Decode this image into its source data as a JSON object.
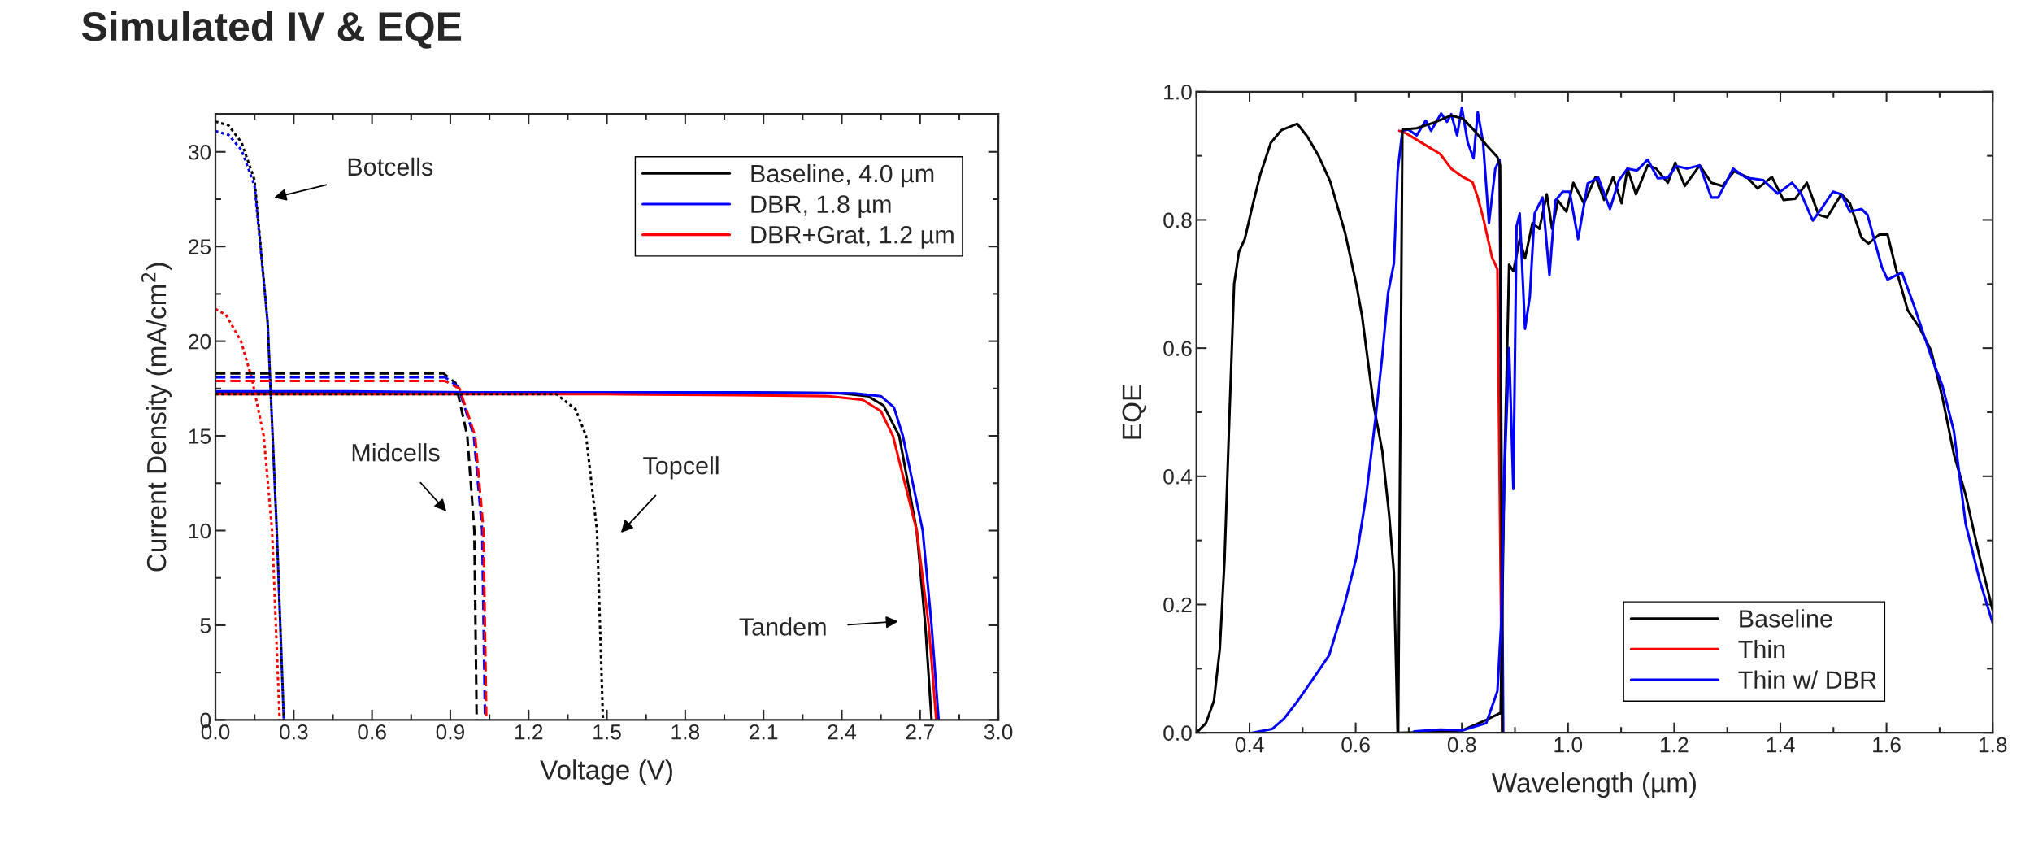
{
  "chart_data": [
    {
      "type": "line",
      "title": "Simulated IV & EQE",
      "xlabel": "Voltage (V)",
      "ylabel": "Current Density (mA/cm$^{2}$)",
      "xlim": [
        0,
        3
      ],
      "ylim": [
        0,
        32
      ],
      "xticks": [
        {
          "value": 0,
          "label": "0.0"
        },
        0.3,
        0.6,
        0.9,
        1.2,
        1.5,
        1.8,
        2.1,
        2.4,
        2.7,
        {
          "value": 3,
          "label": "3.0"
        }
      ],
      "yticks": [
        0,
        5,
        10,
        15,
        20,
        25,
        30
      ],
      "grid": false,
      "legend": "top right",
      "marker": "none",
      "series": [
        {
          "name": "Baseline, 4.0 µm",
          "color": "#000000",
          "line_style": "solid",
          "x": [
            0,
            0.5,
            1.0,
            1.5,
            2.0,
            2.4,
            2.5,
            2.56,
            2.62,
            2.687,
            2.72,
            2.744
          ],
          "values": [
            17.3,
            17.3,
            17.3,
            17.3,
            17.3,
            17.25,
            17.1,
            16.6,
            15,
            10,
            5,
            0
          ]
        },
        {
          "name": "DBR, 1.8 µm",
          "color": "#0000ff",
          "line_style": "solid",
          "x": [
            0,
            0.5,
            1.0,
            1.5,
            2.0,
            2.45,
            2.55,
            2.6,
            2.634,
            2.71,
            2.744,
            2.771
          ],
          "values": [
            17.35,
            17.35,
            17.3,
            17.3,
            17.3,
            17.25,
            17.1,
            16.5,
            15,
            10,
            5,
            0
          ]
        },
        {
          "name": "DBR+Grat, 1.2 µm",
          "color": "#ff0000",
          "line_style": "solid",
          "x": [
            0,
            0.5,
            1.0,
            1.5,
            2.0,
            2.35,
            2.48,
            2.55,
            2.596,
            2.687,
            2.733,
            2.762
          ],
          "values": [
            17.2,
            17.2,
            17.2,
            17.2,
            17.15,
            17.1,
            16.9,
            16.3,
            15,
            10,
            5,
            0
          ]
        },
        {
          "color": "#000000",
          "line_style": "dotted",
          "x": [
            0,
            0.05,
            0.1,
            0.15,
            0.2,
            0.235,
            0.262
          ],
          "values": [
            31.6,
            31.4,
            30.5,
            28.5,
            21,
            10,
            0
          ]
        },
        {
          "color": "#0000ff",
          "line_style": "dotted",
          "x": [
            0,
            0.05,
            0.1,
            0.15,
            0.2,
            0.235,
            0.262
          ],
          "values": [
            31.1,
            30.9,
            30.1,
            28.2,
            21,
            10,
            0
          ]
        },
        {
          "color": "#ff0000",
          "line_style": "dotted",
          "x": [
            0,
            0.04,
            0.098,
            0.14,
            0.185,
            0.217,
            0.246
          ],
          "values": [
            21.7,
            21.4,
            20,
            18,
            15,
            10,
            0
          ]
        },
        {
          "color": "#000000",
          "line_style": "dashed",
          "x": [
            0,
            0.5,
            0.874,
            0.92,
            0.965,
            0.992,
            1.001
          ],
          "values": [
            18.3,
            18.3,
            18.3,
            17.8,
            15,
            10,
            0
          ]
        },
        {
          "color": "#0000ff",
          "line_style": "dashed",
          "x": [
            0,
            0.5,
            0.88,
            0.93,
            0.99,
            1.022,
            1.033
          ],
          "values": [
            18.1,
            18.1,
            18.1,
            17.6,
            15,
            10,
            0
          ]
        },
        {
          "color": "#ff0000",
          "line_style": "dashed",
          "x": [
            0,
            0.5,
            0.88,
            0.935,
            0.995,
            1.027,
            1.038
          ],
          "values": [
            17.9,
            17.9,
            17.9,
            17.5,
            15,
            10,
            0
          ]
        },
        {
          "color": "#000000",
          "line_style": "dotted",
          "x": [
            0,
            0.8,
            1.307,
            1.38,
            1.42,
            1.462,
            1.485
          ],
          "values": [
            17.2,
            17.2,
            17.2,
            16.4,
            15,
            10,
            0
          ]
        }
      ],
      "annotations": [
        "Botcells",
        "Midcells",
        "Topcell",
        "Tandem"
      ]
    },
    {
      "type": "line",
      "xlabel": "Wavelength (µm)",
      "ylabel": "EQE",
      "xlim": [
        0.3,
        1.8
      ],
      "ylim": [
        0,
        1
      ],
      "xticks": [
        0.4,
        0.6,
        0.8,
        {
          "value": 1,
          "label": "1.0"
        },
        1.2,
        1.4,
        1.6,
        1.8
      ],
      "yticks": [
        {
          "value": 0,
          "label": "0.0"
        },
        0.2,
        0.4,
        0.6,
        0.8,
        {
          "value": 1,
          "label": "1.0"
        }
      ],
      "grid": false,
      "legend": "bottom right",
      "marker": "none",
      "series": [
        {
          "name": "Baseline",
          "color": "#000000",
          "line_style": "solid",
          "x": [
            0.3,
            0.318,
            0.333,
            0.344,
            0.353,
            0.362,
            0.371,
            0.38,
            0.391,
            0.405,
            0.42,
            0.44,
            0.46,
            0.49,
            0.509,
            0.53,
            0.552,
            0.58,
            0.601,
            0.612,
            0.623,
            0.634,
            0.65,
            0.663,
            0.672,
            0.679
          ],
          "values": [
            0,
            0.015,
            0.05,
            0.13,
            0.27,
            0.49,
            0.7,
            0.75,
            0.77,
            0.82,
            0.87,
            0.92,
            0.94,
            0.95,
            0.93,
            0.9,
            0.86,
            0.78,
            0.7,
            0.65,
            0.58,
            0.51,
            0.44,
            0.34,
            0.25,
            0
          ]
        },
        {
          "name": "Thin",
          "color": "#ff0000",
          "line_style": "solid",
          "x": [
            0.682,
            0.693,
            0.715,
            0.737,
            0.759,
            0.78,
            0.802,
            0.82,
            0.83,
            0.84,
            0.857,
            0.867,
            0.876
          ],
          "values": [
            0.939,
            0.936,
            0.925,
            0.914,
            0.903,
            0.88,
            0.867,
            0.859,
            0.835,
            0.804,
            0.741,
            0.723,
            0
          ]
        },
        {
          "name": "Thin w/ DBR",
          "color": "#0000ff",
          "line_style": "solid",
          "x": [
            0.405,
            0.443,
            0.465,
            0.492,
            0.519,
            0.55,
            0.579,
            0.601,
            0.62,
            0.637,
            0.65,
            0.661,
            0.672,
            0.679,
            0.688,
            0.699,
            0.715,
            0.732,
            0.742,
            0.761,
            0.772,
            0.78,
            0.791,
            0.8,
            0.811,
            0.822,
            0.83,
            0.84,
            0.851,
            0.863,
            0.871,
            0.878
          ],
          "values": [
            0,
            0.006,
            0.022,
            0.051,
            0.083,
            0.121,
            0.2,
            0.272,
            0.371,
            0.488,
            0.587,
            0.686,
            0.732,
            0.876,
            0.939,
            0.941,
            0.932,
            0.955,
            0.939,
            0.966,
            0.953,
            0.965,
            0.932,
            0.975,
            0.921,
            0.896,
            0.968,
            0.921,
            0.795,
            0.88,
            0.894,
            0
          ]
        },
        {
          "color": "#000000",
          "line_style": "solid",
          "x": [
            0.68,
            0.688,
            0.715,
            0.748,
            0.78,
            0.802,
            0.824,
            0.846,
            0.867,
            0.872,
            0.876
          ],
          "values": [
            0,
            0.941,
            0.943,
            0.952,
            0.963,
            0.958,
            0.939,
            0.917,
            0.898,
            0.885,
            0
          ]
        },
        {
          "color": "#000000",
          "line_style": "solid",
          "x": [
            0.68,
            0.75,
            0.802,
            0.846,
            0.87,
            0.873,
            0.88,
            0.889,
            0.897,
            0.909,
            0.919,
            0.933,
            0.946,
            0.96,
            0.97,
            0.981,
            0.997,
            1.01,
            1.03,
            1.052,
            1.068,
            1.085,
            1.101,
            1.112,
            1.128,
            1.15,
            1.166,
            1.188,
            1.202,
            1.22,
            1.248,
            1.27,
            1.291,
            1.313,
            1.337,
            1.357,
            1.384,
            1.406,
            1.428,
            1.45,
            1.472,
            1.488,
            1.515,
            1.531,
            1.553,
            1.566,
            1.586,
            1.602,
            1.618,
            1.64,
            1.662,
            1.684,
            1.705,
            1.727,
            1.749,
            1.776,
            1.8
          ],
          "values": [
            0,
            0.001,
            0.004,
            0.02,
            0.03,
            0.03,
            0.4,
            0.73,
            0.72,
            0.77,
            0.74,
            0.795,
            0.786,
            0.84,
            0.786,
            0.83,
            0.813,
            0.858,
            0.826,
            0.867,
            0.831,
            0.867,
            0.826,
            0.88,
            0.84,
            0.885,
            0.88,
            0.858,
            0.889,
            0.853,
            0.885,
            0.858,
            0.853,
            0.876,
            0.867,
            0.849,
            0.867,
            0.831,
            0.833,
            0.858,
            0.808,
            0.804,
            0.84,
            0.826,
            0.772,
            0.763,
            0.777,
            0.777,
            0.723,
            0.659,
            0.632,
            0.596,
            0.524,
            0.434,
            0.371,
            0.272,
            0.191
          ]
        },
        {
          "color": "#0000ff",
          "line_style": "solid",
          "x": [
            0.71,
            0.759,
            0.802,
            0.846,
            0.867,
            0.874,
            0.88,
            0.889,
            0.897,
            0.903,
            0.909,
            0.919,
            0.928,
            0.937,
            0.952,
            0.965,
            0.976,
            0.99,
            1.003,
            1.019,
            1.037,
            1.057,
            1.079,
            1.096,
            1.112,
            1.13,
            1.15,
            1.169,
            1.188,
            1.204,
            1.224,
            1.248,
            1.27,
            1.283,
            1.311,
            1.335,
            1.368,
            1.395,
            1.422,
            1.439,
            1.461,
            1.477,
            1.499,
            1.515,
            1.531,
            1.553,
            1.564,
            1.591,
            1.602,
            1.629,
            1.651,
            1.684,
            1.705,
            1.727,
            1.749,
            1.776,
            1.8
          ],
          "values": [
            0.002,
            0.005,
            0.004,
            0.015,
            0.065,
            0.17,
            0.4,
            0.6,
            0.38,
            0.79,
            0.81,
            0.63,
            0.68,
            0.81,
            0.835,
            0.714,
            0.83,
            0.844,
            0.844,
            0.77,
            0.857,
            0.866,
            0.817,
            0.862,
            0.88,
            0.877,
            0.894,
            0.865,
            0.866,
            0.884,
            0.88,
            0.885,
            0.835,
            0.835,
            0.88,
            0.866,
            0.862,
            0.841,
            0.858,
            0.841,
            0.799,
            0.817,
            0.844,
            0.84,
            0.813,
            0.817,
            0.808,
            0.727,
            0.707,
            0.718,
            0.668,
            0.587,
            0.542,
            0.47,
            0.326,
            0.236,
            0.171
          ]
        }
      ]
    }
  ]
}
